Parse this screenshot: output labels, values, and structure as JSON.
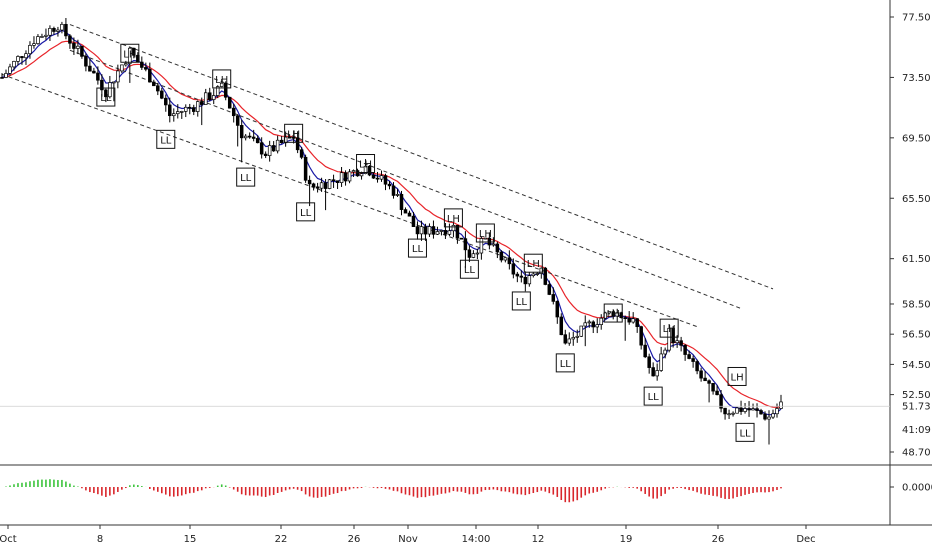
{
  "chart_data": {
    "type": "candlestick",
    "price_axis": {
      "ticks": [
        "77.50",
        "73.50",
        "69.50",
        "65.50",
        "61.50",
        "58.50",
        "56.50",
        "54.50",
        "52.50",
        "48.70"
      ],
      "tick_values": [
        77.5,
        73.5,
        69.5,
        65.5,
        61.5,
        58.5,
        56.5,
        54.5,
        52.5,
        48.7
      ],
      "last_price": "51.73",
      "last_value": 51.73,
      "countdown": "41:09"
    },
    "oscillator_axis": {
      "ticks": [
        "0.0000"
      ]
    },
    "time_axis": {
      "labels": [
        "Oct",
        "8",
        "15",
        "22",
        "26",
        "Nov",
        "14:00",
        "12",
        "19",
        "26",
        "Dec"
      ]
    },
    "pattern_labels": [
      {
        "text": "LH",
        "bar": 32,
        "price": 75.1
      },
      {
        "text": "LL",
        "bar": 26,
        "price": 72.2
      },
      {
        "text": "LL",
        "bar": 41,
        "price": 69.4
      },
      {
        "text": "LH",
        "bar": 55,
        "price": 73.4
      },
      {
        "text": "LL",
        "bar": 61,
        "price": 66.9
      },
      {
        "text": "LH",
        "bar": 73,
        "price": 69.8
      },
      {
        "text": "LL",
        "bar": 76,
        "price": 64.6
      },
      {
        "text": "LH",
        "bar": 91,
        "price": 67.8
      },
      {
        "text": "LL",
        "bar": 104,
        "price": 62.2
      },
      {
        "text": "LH",
        "bar": 113,
        "price": 64.2
      },
      {
        "text": "LH",
        "bar": 121,
        "price": 63.2
      },
      {
        "text": "LL",
        "bar": 117,
        "price": 60.8
      },
      {
        "text": "LH",
        "bar": 133,
        "price": 61.2
      },
      {
        "text": "LL",
        "bar": 130,
        "price": 58.7
      },
      {
        "text": "LL",
        "bar": 141,
        "price": 54.6
      },
      {
        "text": "LH",
        "bar": 153,
        "price": 57.9
      },
      {
        "text": "LH",
        "bar": 167,
        "price": 56.9
      },
      {
        "text": "LL",
        "bar": 163,
        "price": 52.4
      },
      {
        "text": "LH",
        "bar": 184,
        "price": 53.7
      },
      {
        "text": "LL",
        "bar": 186,
        "price": 50.0
      }
    ],
    "channel_lines": [
      {
        "from": {
          "bar": 17,
          "price": 77.0
        },
        "to": {
          "bar": 193,
          "price": 59.5
        }
      },
      {
        "from": {
          "bar": 17,
          "price": 75.3
        },
        "to": {
          "bar": 185,
          "price": 58.2
        }
      },
      {
        "from": {
          "bar": 0,
          "price": 73.7
        },
        "to": {
          "bar": 174,
          "price": 57.0
        }
      }
    ],
    "colors": {
      "bull_candle": "#000000",
      "bear_candle": "#000000",
      "fast_ma": "#1a1aa6",
      "slow_ma": "#e8242a",
      "osc_positive": "#3cc43c",
      "osc_negative": "#d9262b",
      "channel": "#333333"
    },
    "grid": false
  }
}
